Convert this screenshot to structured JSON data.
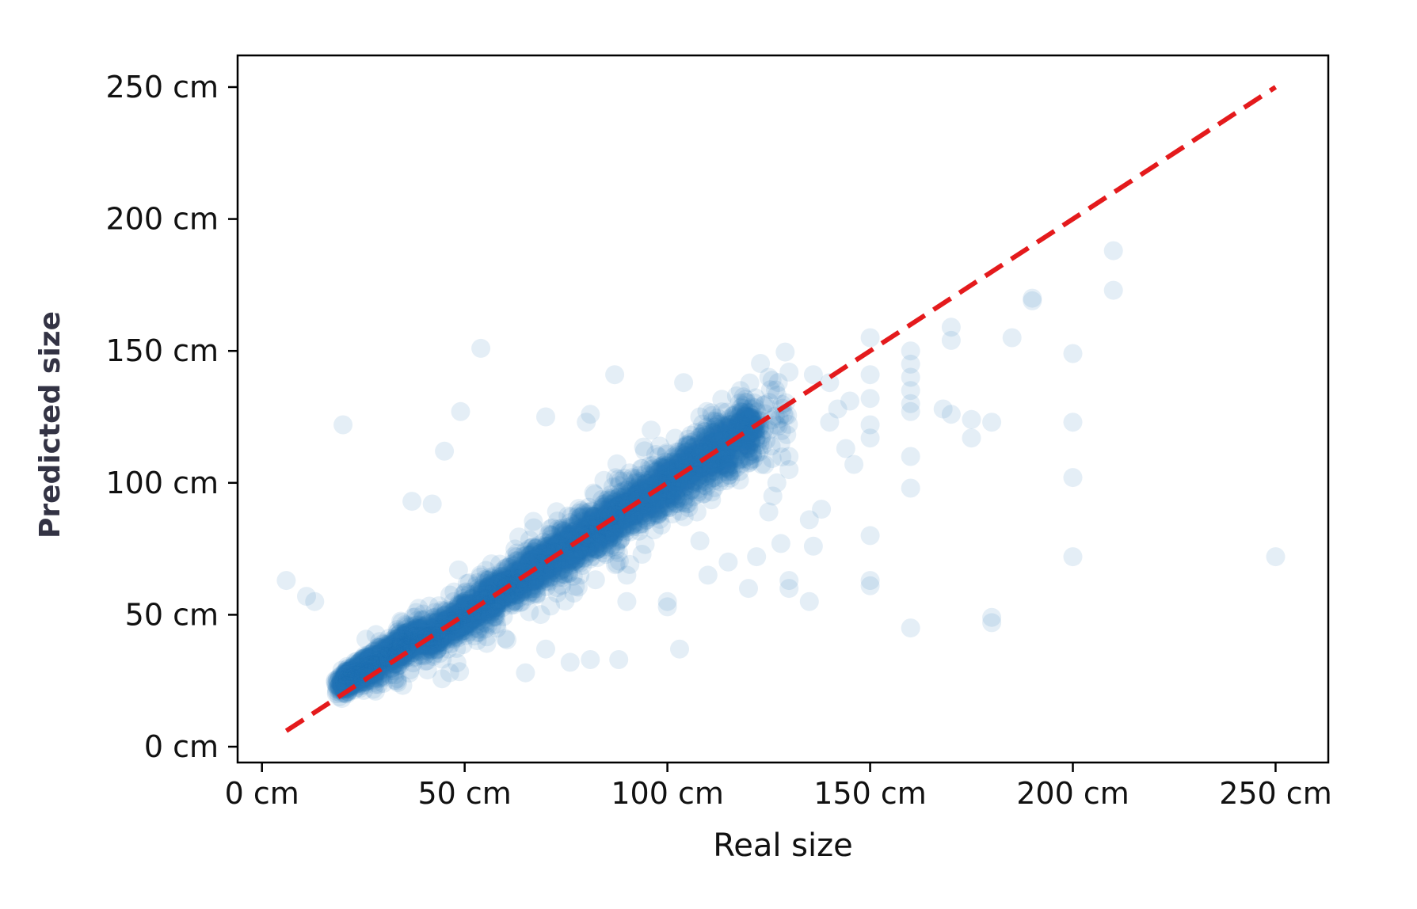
{
  "chart_data": {
    "type": "scatter",
    "xlabel": "Real size",
    "ylabel": "Predicted size",
    "xlim": [
      -6,
      263
    ],
    "ylim": [
      -6,
      262
    ],
    "x_ticks": [
      {
        "value": 0,
        "label": "0 cm"
      },
      {
        "value": 50,
        "label": "50 cm"
      },
      {
        "value": 100,
        "label": "100 cm"
      },
      {
        "value": 150,
        "label": "150 cm"
      },
      {
        "value": 200,
        "label": "200 cm"
      },
      {
        "value": 250,
        "label": "250 cm"
      }
    ],
    "y_ticks": [
      {
        "value": 0,
        "label": "0 cm"
      },
      {
        "value": 50,
        "label": "50 cm"
      },
      {
        "value": 100,
        "label": "100 cm"
      },
      {
        "value": 150,
        "label": "150 cm"
      },
      {
        "value": 200,
        "label": "200 cm"
      },
      {
        "value": 250,
        "label": "250 cm"
      }
    ],
    "grid": false,
    "colors": {
      "points": "#1f77b4",
      "reference_line": "#e41a1c",
      "axes": "#000000"
    },
    "reference_line": {
      "style": "dashed",
      "x": [
        6,
        250
      ],
      "y": [
        6,
        250
      ]
    },
    "point_alpha": 0.12,
    "dense_cluster": {
      "description_x_range": [
        20,
        122
      ],
      "relation": "y approx x with scatter",
      "approx_count": 4000
    },
    "outliers": [
      {
        "x": 20,
        "y": 122
      },
      {
        "x": 54,
        "y": 151
      },
      {
        "x": 87,
        "y": 141
      },
      {
        "x": 49,
        "y": 127
      },
      {
        "x": 45,
        "y": 112
      },
      {
        "x": 42,
        "y": 92
      },
      {
        "x": 37,
        "y": 93
      },
      {
        "x": 6,
        "y": 63
      },
      {
        "x": 11,
        "y": 57
      },
      {
        "x": 13,
        "y": 55
      },
      {
        "x": 70,
        "y": 125
      },
      {
        "x": 80,
        "y": 123
      },
      {
        "x": 81,
        "y": 126
      },
      {
        "x": 96,
        "y": 120
      },
      {
        "x": 104,
        "y": 138
      },
      {
        "x": 118,
        "y": 135
      },
      {
        "x": 125,
        "y": 140
      },
      {
        "x": 130,
        "y": 142
      },
      {
        "x": 136,
        "y": 141
      },
      {
        "x": 140,
        "y": 138
      },
      {
        "x": 150,
        "y": 155
      },
      {
        "x": 150,
        "y": 141
      },
      {
        "x": 150,
        "y": 132
      },
      {
        "x": 150,
        "y": 122
      },
      {
        "x": 150,
        "y": 117
      },
      {
        "x": 150,
        "y": 80
      },
      {
        "x": 150,
        "y": 63
      },
      {
        "x": 150,
        "y": 61
      },
      {
        "x": 160,
        "y": 150
      },
      {
        "x": 160,
        "y": 145
      },
      {
        "x": 160,
        "y": 140
      },
      {
        "x": 160,
        "y": 135
      },
      {
        "x": 160,
        "y": 130
      },
      {
        "x": 160,
        "y": 127
      },
      {
        "x": 160,
        "y": 110
      },
      {
        "x": 160,
        "y": 98
      },
      {
        "x": 160,
        "y": 45
      },
      {
        "x": 170,
        "y": 159
      },
      {
        "x": 170,
        "y": 154
      },
      {
        "x": 170,
        "y": 126
      },
      {
        "x": 168,
        "y": 128
      },
      {
        "x": 175,
        "y": 117
      },
      {
        "x": 175,
        "y": 124
      },
      {
        "x": 180,
        "y": 123
      },
      {
        "x": 180,
        "y": 47
      },
      {
        "x": 180,
        "y": 49
      },
      {
        "x": 185,
        "y": 155
      },
      {
        "x": 190,
        "y": 170
      },
      {
        "x": 190,
        "y": 169
      },
      {
        "x": 200,
        "y": 149
      },
      {
        "x": 200,
        "y": 123
      },
      {
        "x": 200,
        "y": 102
      },
      {
        "x": 200,
        "y": 72
      },
      {
        "x": 210,
        "y": 188
      },
      {
        "x": 210,
        "y": 173
      },
      {
        "x": 250,
        "y": 72
      },
      {
        "x": 146,
        "y": 107
      },
      {
        "x": 144,
        "y": 113
      },
      {
        "x": 138,
        "y": 90
      },
      {
        "x": 136,
        "y": 76
      },
      {
        "x": 135,
        "y": 86
      },
      {
        "x": 135,
        "y": 55
      },
      {
        "x": 130,
        "y": 60
      },
      {
        "x": 130,
        "y": 63
      },
      {
        "x": 128,
        "y": 77
      },
      {
        "x": 126,
        "y": 95
      },
      {
        "x": 125,
        "y": 89
      },
      {
        "x": 122,
        "y": 72
      },
      {
        "x": 120,
        "y": 60
      },
      {
        "x": 115,
        "y": 70
      },
      {
        "x": 110,
        "y": 65
      },
      {
        "x": 108,
        "y": 78
      },
      {
        "x": 103,
        "y": 37
      },
      {
        "x": 100,
        "y": 55
      },
      {
        "x": 100,
        "y": 53
      },
      {
        "x": 90,
        "y": 55
      },
      {
        "x": 90,
        "y": 65
      },
      {
        "x": 88,
        "y": 33
      },
      {
        "x": 81,
        "y": 33
      },
      {
        "x": 76,
        "y": 32
      },
      {
        "x": 70,
        "y": 37
      },
      {
        "x": 65,
        "y": 28
      },
      {
        "x": 60,
        "y": 41
      },
      {
        "x": 125,
        "y": 120
      },
      {
        "x": 128,
        "y": 115
      },
      {
        "x": 130,
        "y": 110
      },
      {
        "x": 130,
        "y": 105
      },
      {
        "x": 127,
        "y": 100
      },
      {
        "x": 140,
        "y": 123
      },
      {
        "x": 142,
        "y": 128
      },
      {
        "x": 145,
        "y": 131
      }
    ]
  }
}
